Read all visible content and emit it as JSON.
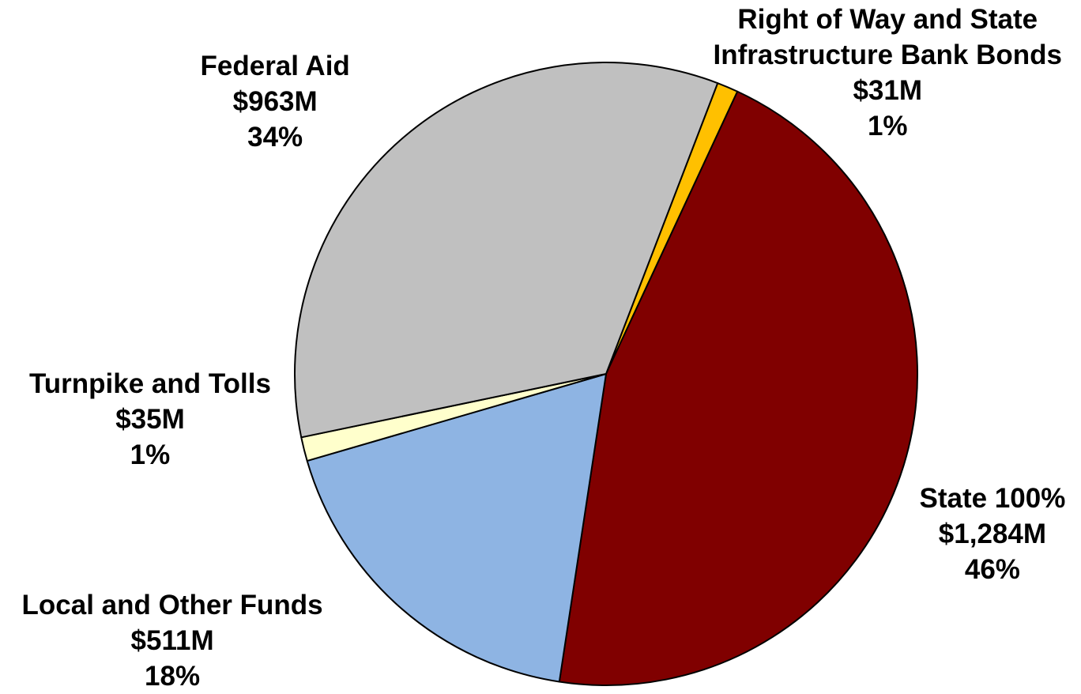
{
  "chart_data": {
    "type": "pie",
    "title": "",
    "start_angle_deg": 69,
    "direction": "clockwise",
    "slices": [
      {
        "name": "Right of Way and State Infrastructure Bank Bonds",
        "label_lines": [
          "Right of Way and State",
          "Infrastructure Bank Bonds"
        ],
        "amount_label": "$31M",
        "value": 31,
        "percent_label": "1%",
        "color": "#FFC000"
      },
      {
        "name": "State 100%",
        "label_lines": [
          "State 100%"
        ],
        "amount_label": "$1,284M",
        "value": 1284,
        "percent_label": "46%",
        "color": "#800000"
      },
      {
        "name": "Local and Other Funds",
        "label_lines": [
          "Local and Other Funds"
        ],
        "amount_label": "$511M",
        "value": 511,
        "percent_label": "18%",
        "color": "#8EB4E3"
      },
      {
        "name": "Turnpike and Tolls",
        "label_lines": [
          "Turnpike and Tolls"
        ],
        "amount_label": "$35M",
        "value": 35,
        "percent_label": "1%",
        "color": "#FFFFCC"
      },
      {
        "name": "Federal Aid",
        "label_lines": [
          "Federal Aid"
        ],
        "amount_label": "$963M",
        "value": 963,
        "percent_label": "34%",
        "color": "#C0C0C0"
      }
    ]
  }
}
